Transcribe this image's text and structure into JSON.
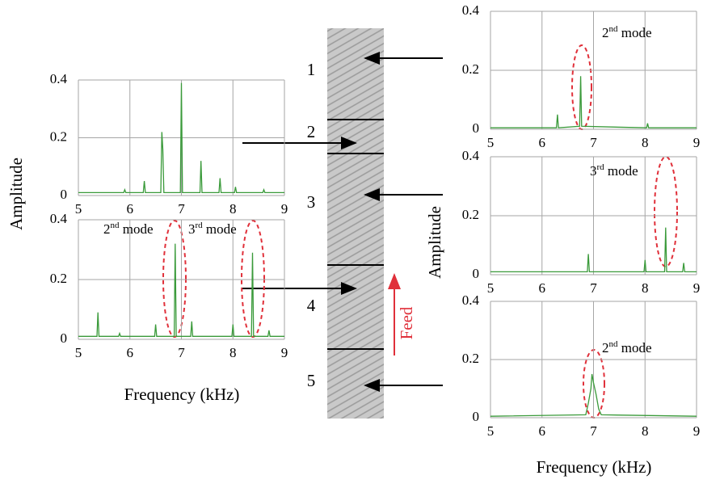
{
  "chart_data": [
    {
      "type": "line",
      "x": [
        5,
        6.28,
        6.3,
        6.32,
        6.73,
        6.75,
        6.77,
        8.03,
        8.05,
        8.07,
        9
      ],
      "values": [
        0.005,
        0.005,
        0.05,
        0.005,
        0.01,
        0.18,
        0.01,
        0.005,
        0.02,
        0.005,
        0.005
      ],
      "color": "#3a9a3a",
      "xlim": [
        5,
        9
      ],
      "xticks": [
        5,
        6,
        7,
        8,
        9
      ],
      "ylim": [
        0,
        0.4
      ],
      "yticks": [
        0,
        0.2,
        0.4
      ],
      "grid": true,
      "annotations": [
        {
          "base": "2",
          "sup": "nd",
          "rest": " mode"
        }
      ]
    },
    {
      "type": "line",
      "x": [
        5,
        5.88,
        5.9,
        5.92,
        6.26,
        6.28,
        6.3,
        6.6,
        6.62,
        6.64,
        6.66,
        6.98,
        7.0,
        7.02,
        7.36,
        7.38,
        7.4,
        7.73,
        7.75,
        7.77,
        8.03,
        8.05,
        8.07,
        8.58,
        8.6,
        8.62,
        9
      ],
      "values": [
        0.01,
        0.01,
        0.02,
        0.01,
        0.01,
        0.05,
        0.01,
        0.01,
        0.22,
        0.16,
        0.01,
        0.01,
        0.39,
        0.01,
        0.01,
        0.12,
        0.01,
        0.01,
        0.06,
        0.01,
        0.01,
        0.03,
        0.01,
        0.01,
        0.02,
        0.01,
        0.01
      ],
      "color": "#3a9a3a",
      "xlim": [
        5,
        9
      ],
      "xticks": [
        5,
        6,
        7,
        8,
        9
      ],
      "ylim": [
        0,
        0.4
      ],
      "yticks": [
        0,
        0.2,
        0.4
      ],
      "grid": true,
      "ylabel": "Amplitude"
    },
    {
      "type": "line",
      "x": [
        5,
        6.88,
        6.9,
        6.92,
        7.98,
        8.0,
        8.02,
        8.38,
        8.4,
        8.42,
        8.73,
        8.75,
        8.77,
        9
      ],
      "values": [
        0.01,
        0.01,
        0.07,
        0.01,
        0.01,
        0.05,
        0.01,
        0.01,
        0.16,
        0.01,
        0.01,
        0.04,
        0.01,
        0.01
      ],
      "color": "#3a9a3a",
      "xlim": [
        5,
        9
      ],
      "xticks": [
        5,
        6,
        7,
        8,
        9
      ],
      "ylim": [
        0,
        0.4
      ],
      "yticks": [
        0,
        0.2,
        0.4
      ],
      "grid": true,
      "ylabel": "Amplitude",
      "annotations": [
        {
          "base": "3",
          "sup": "rd",
          "rest": " mode"
        }
      ]
    },
    {
      "type": "line",
      "x": [
        5,
        5.36,
        5.38,
        5.4,
        5.78,
        5.8,
        5.82,
        6.48,
        6.5,
        6.52,
        6.86,
        6.88,
        6.9,
        7.18,
        7.2,
        7.22,
        7.98,
        8.0,
        8.02,
        8.36,
        8.38,
        8.4,
        8.68,
        8.7,
        8.72,
        9
      ],
      "values": [
        0.01,
        0.01,
        0.09,
        0.01,
        0.01,
        0.02,
        0.01,
        0.01,
        0.05,
        0.01,
        0.01,
        0.32,
        0.01,
        0.01,
        0.06,
        0.01,
        0.01,
        0.05,
        0.01,
        0.01,
        0.29,
        0.01,
        0.01,
        0.03,
        0.01,
        0.01
      ],
      "color": "#3a9a3a",
      "xlim": [
        5,
        9
      ],
      "xticks": [
        5,
        6,
        7,
        8,
        9
      ],
      "ylim": [
        0,
        0.4
      ],
      "yticks": [
        0,
        0.2,
        0.4
      ],
      "grid": true,
      "xlabel": "Frequency (kHz)",
      "annotations": [
        {
          "base": "2",
          "sup": "nd",
          "rest": " mode"
        },
        {
          "base": "3",
          "sup": "rd",
          "rest": " mode"
        }
      ]
    },
    {
      "type": "line",
      "x": [
        5,
        6.85,
        6.9,
        6.95,
        6.97,
        7.0,
        7.05,
        7.1,
        7.15,
        9
      ],
      "values": [
        0.005,
        0.01,
        0.05,
        0.1,
        0.15,
        0.12,
        0.08,
        0.03,
        0.01,
        0.005
      ],
      "color": "#3a9a3a",
      "xlim": [
        5,
        9
      ],
      "xticks": [
        5,
        6,
        7,
        8,
        9
      ],
      "ylim": [
        0,
        0.4
      ],
      "yticks": [
        0,
        0.2,
        0.4
      ],
      "grid": true,
      "xlabel": "Frequency (kHz)",
      "annotations": [
        {
          "base": "2",
          "sup": "nd",
          "rest": " mode"
        }
      ]
    }
  ],
  "specimen": {
    "regions": [
      "1",
      "2",
      "3",
      "4",
      "5"
    ],
    "feed": "Feed"
  }
}
